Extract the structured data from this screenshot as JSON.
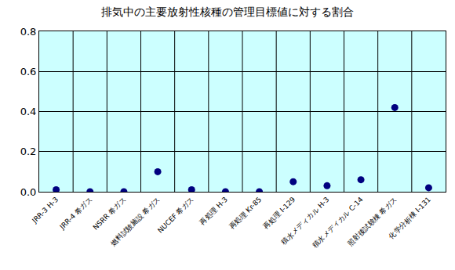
{
  "chart_data": {
    "type": "scatter",
    "title": "排気中の主要放射性核種の管理目標値に対する割合",
    "categories": [
      "JRR-3 H-3",
      "JRR-4 希ガス",
      "NSRR 希ガス",
      "燃料試験施設 希ガス",
      "NUCEF 希ガス",
      "再処理 H-3",
      "再処理 Kr-85",
      "再処理 I-129",
      "積水メディカル H-3",
      "積水メディカル C-14",
      "照射後試験棟 希ガス",
      "化学分析棟 I-131"
    ],
    "values": [
      0.01,
      0.0,
      0.0,
      0.1,
      0.01,
      0.0,
      0.0,
      0.05,
      0.03,
      0.06,
      0.42,
      0.02
    ],
    "color": "#000080",
    "marker": "circle",
    "ylim": [
      0,
      0.8
    ],
    "yticks": [
      {
        "value": 0,
        "label": "0.0"
      },
      0.2,
      0.4,
      0.6,
      0.8
    ],
    "grid": true
  }
}
